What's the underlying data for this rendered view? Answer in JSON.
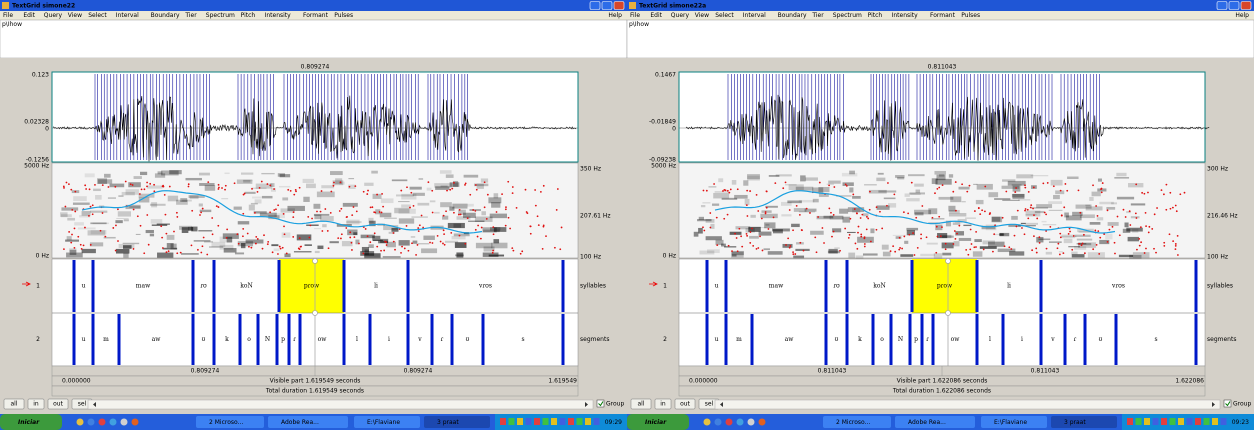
{
  "windows": [
    {
      "title": "TextGrid simone22",
      "menu": [
        "File",
        "Edit",
        "Query",
        "View",
        "Select",
        "Interval",
        "Boundary",
        "Tier",
        "Spectrum",
        "Pitch",
        "Intensity",
        "Formant",
        "Pulses"
      ],
      "help": "Help",
      "text": "p\\Ihow",
      "cursor": "0.809274",
      "wave_axis": {
        "top": "0.123",
        "mid": "0.02328",
        "zero": "0",
        "bottom": "-0.1256"
      },
      "spec_axis": {
        "top": "5000 Hz",
        "bottom": "0 Hz"
      },
      "pitch_axis": {
        "top": "350 Hz",
        "mid": "207.61 Hz",
        "bottom": "100 Hz"
      },
      "tiers": [
        {
          "number": "1",
          "name": "syllables",
          "intervals": [
            "u",
            "maw",
            "ɾʊ",
            "koN",
            "pɾow",
            "li",
            "vɾʊs"
          ]
        },
        {
          "number": "2",
          "name": "segments",
          "intervals": [
            "u",
            "m",
            "aw",
            "ʊ",
            "k",
            "o",
            "N",
            "p",
            "ɾ",
            "ow",
            "l",
            "i",
            "v",
            "ɾ",
            "ʊ",
            "s"
          ]
        }
      ],
      "cursor_times": [
        "0.809274",
        "0.809274"
      ],
      "start": "0.000000",
      "visible": "Visible part 1.619549 seconds",
      "end": "1.619549",
      "total": "Total duration 1.619549 seconds",
      "buttons": [
        "all",
        "in",
        "out",
        "sel"
      ],
      "group": "Group",
      "taskbar": {
        "start": "Iniciar",
        "items": [
          "2 Microso...",
          "Adobe Rea...",
          "E:\\Flaviane",
          "3 praat"
        ],
        "clock": "09:29"
      }
    },
    {
      "title": "TextGrid simone22a",
      "menu": [
        "File",
        "Edit",
        "Query",
        "View",
        "Select",
        "Interval",
        "Boundary",
        "Tier",
        "Spectrum",
        "Pitch",
        "Intensity",
        "Formant",
        "Pulses"
      ],
      "help": "Help",
      "text": "p\\Ihow",
      "cursor": "0.811043",
      "wave_axis": {
        "top": "0.1467",
        "mid": "-0.01849",
        "zero": "0",
        "bottom": "-0.09238"
      },
      "spec_axis": {
        "top": "5000 Hz",
        "bottom": "0 Hz"
      },
      "pitch_axis": {
        "top": "300 Hz",
        "mid": "216.46 Hz",
        "bottom": "100 Hz"
      },
      "tiers": [
        {
          "number": "1",
          "name": "syllables",
          "intervals": [
            "u",
            "maw",
            "ɾʊ",
            "koN",
            "pɾow",
            "li",
            "vɾʊs"
          ]
        },
        {
          "number": "2",
          "name": "segments",
          "intervals": [
            "u",
            "m",
            "aw",
            "ʊ",
            "k",
            "o",
            "N",
            "p",
            "ɾ",
            "ow",
            "l",
            "i",
            "v",
            "ɾ",
            "ʊ",
            "s"
          ]
        }
      ],
      "cursor_times": [
        "0.811043",
        "0.811043"
      ],
      "start": "0.000000",
      "visible": "Visible part 1.622086 seconds",
      "end": "1.622086",
      "total": "Total duration 1.622086 seconds",
      "buttons": [
        "all",
        "in",
        "out",
        "sel"
      ],
      "group": "Group",
      "taskbar": {
        "start": "Iniciar",
        "items": [
          "2 Microso...",
          "Adobe Rea...",
          "E:\\Flaviane",
          "3 praat"
        ],
        "clock": "09:23"
      }
    }
  ]
}
